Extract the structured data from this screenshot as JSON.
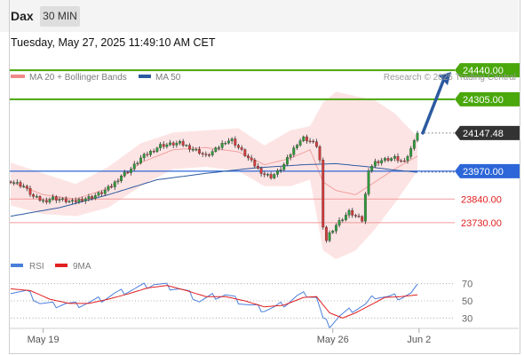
{
  "header": {
    "instrument": "Dax",
    "timeframe": "30 MIN",
    "datetime": "Tuesday, May 27, 2025 11:49:10 AM CET"
  },
  "legend": {
    "bollinger": {
      "label": "MA 20 + Bollinger Bands",
      "color": "#f08a8a"
    },
    "ma50": {
      "label": "MA 50",
      "color": "#2c5aa0"
    },
    "copyright": "Research © 2025 Trading Central"
  },
  "chart_data": [
    {
      "type": "line",
      "price_range": [
        23560,
        24540
      ],
      "candle_count": 126,
      "current_price": 24147.48,
      "key_levels": [
        {
          "value": 24440.0,
          "label": "24440.00",
          "kind": "resistance",
          "color": "#4aa70c"
        },
        {
          "value": 24305.0,
          "label": "24305.00",
          "kind": "resistance",
          "color": "#4aa70c"
        },
        {
          "value": 24147.48,
          "label": "24147.48",
          "kind": "last",
          "color": "#333333"
        },
        {
          "value": 23970.0,
          "label": "23970.00",
          "kind": "pivot",
          "color": "#2c66d8"
        },
        {
          "value": 23840.0,
          "label": "23840.00",
          "kind": "support",
          "color": "#e12020"
        },
        {
          "value": 23730.0,
          "label": "23730.00",
          "kind": "support",
          "color": "#e12020"
        }
      ],
      "price_path": [
        [
          0,
          23925
        ],
        [
          4,
          23900
        ],
        [
          7,
          23850
        ],
        [
          10,
          23830
        ],
        [
          13,
          23845
        ],
        [
          16,
          23835
        ],
        [
          19,
          23825
        ],
        [
          22,
          23840
        ],
        [
          25,
          23850
        ],
        [
          28,
          23870
        ],
        [
          31,
          23900
        ],
        [
          34,
          23950
        ],
        [
          37,
          23980
        ],
        [
          40,
          24030
        ],
        [
          43,
          24060
        ],
        [
          46,
          24090
        ],
        [
          49,
          24095
        ],
        [
          52,
          24100
        ],
        [
          55,
          24080
        ],
        [
          58,
          24060
        ],
        [
          60,
          24040
        ],
        [
          63,
          24070
        ],
        [
          66,
          24110
        ],
        [
          68,
          24115
        ],
        [
          70,
          24080
        ],
        [
          73,
          24030
        ],
        [
          76,
          23980
        ],
        [
          78,
          23955
        ],
        [
          80,
          23945
        ],
        [
          82,
          23965
        ],
        [
          84,
          24000
        ],
        [
          86,
          24050
        ],
        [
          88,
          24100
        ],
        [
          90,
          24125
        ],
        [
          92,
          24110
        ],
        [
          94,
          24090
        ],
        [
          95,
          24020
        ],
        [
          96,
          23700
        ],
        [
          97,
          23650
        ],
        [
          98,
          23680
        ],
        [
          100,
          23720
        ],
        [
          102,
          23750
        ],
        [
          104,
          23780
        ],
        [
          106,
          23760
        ],
        [
          108,
          23740
        ],
        [
          110,
          23980
        ],
        [
          112,
          24010
        ],
        [
          114,
          24020
        ],
        [
          116,
          24025
        ],
        [
          118,
          24030
        ],
        [
          120,
          24015
        ],
        [
          122,
          24040
        ],
        [
          123,
          24070
        ],
        [
          124,
          24120
        ],
        [
          125,
          24147
        ]
      ],
      "ma50_path": [
        [
          0,
          23760
        ],
        [
          15,
          23800
        ],
        [
          30,
          23860
        ],
        [
          45,
          23930
        ],
        [
          60,
          23960
        ],
        [
          75,
          23985
        ],
        [
          90,
          24000
        ],
        [
          100,
          24005
        ],
        [
          110,
          23990
        ],
        [
          118,
          23975
        ],
        [
          125,
          23965
        ]
      ],
      "bollinger_path": [
        [
          0,
          23810,
          23920,
          24010
        ],
        [
          10,
          23770,
          23860,
          23960
        ],
        [
          20,
          23760,
          23840,
          23910
        ],
        [
          30,
          23800,
          23890,
          23990
        ],
        [
          40,
          23900,
          24010,
          24100
        ],
        [
          50,
          23980,
          24070,
          24150
        ],
        [
          60,
          23990,
          24080,
          24160
        ],
        [
          70,
          23970,
          24060,
          24170
        ],
        [
          78,
          23900,
          24000,
          24090
        ],
        [
          86,
          23900,
          24030,
          24160
        ],
        [
          92,
          23930,
          24070,
          24180
        ],
        [
          96,
          23600,
          23920,
          24290
        ],
        [
          100,
          23560,
          23880,
          24340
        ],
        [
          106,
          23600,
          23860,
          24320
        ],
        [
          112,
          23700,
          23920,
          24300
        ],
        [
          118,
          23820,
          23980,
          24240
        ],
        [
          125,
          23970,
          24040,
          24130
        ]
      ],
      "projection": {
        "from": 24147.48,
        "to": 24440.0
      }
    },
    {
      "type": "line",
      "indicator": "RSI",
      "legend": [
        {
          "label": "RSI",
          "color": "#4a7fdc"
        },
        {
          "label": "9MA",
          "color": "#e12020"
        }
      ],
      "ylim": [
        20,
        80
      ],
      "levels": [
        70,
        50,
        30
      ],
      "level_labels": [
        "70",
        "50",
        "30"
      ],
      "rsi_path": [
        [
          0,
          62
        ],
        [
          5,
          60
        ],
        [
          9,
          48
        ],
        [
          13,
          45
        ],
        [
          17,
          47
        ],
        [
          20,
          45
        ],
        [
          24,
          48
        ],
        [
          28,
          52
        ],
        [
          32,
          58
        ],
        [
          36,
          62
        ],
        [
          40,
          66
        ],
        [
          44,
          70
        ],
        [
          48,
          67
        ],
        [
          52,
          64
        ],
        [
          55,
          58
        ],
        [
          58,
          50
        ],
        [
          62,
          55
        ],
        [
          66,
          57
        ],
        [
          70,
          50
        ],
        [
          74,
          44
        ],
        [
          78,
          40
        ],
        [
          81,
          42
        ],
        [
          85,
          48
        ],
        [
          88,
          55
        ],
        [
          91,
          58
        ],
        [
          94,
          54
        ],
        [
          96,
          28
        ],
        [
          98,
          22
        ],
        [
          101,
          32
        ],
        [
          105,
          40
        ],
        [
          109,
          45
        ],
        [
          112,
          56
        ],
        [
          116,
          54
        ],
        [
          120,
          55
        ],
        [
          123,
          58
        ],
        [
          125,
          66
        ]
      ],
      "ma9_path": [
        [
          0,
          64
        ],
        [
          6,
          62
        ],
        [
          12,
          52
        ],
        [
          18,
          47
        ],
        [
          24,
          47
        ],
        [
          30,
          52
        ],
        [
          36,
          58
        ],
        [
          42,
          65
        ],
        [
          48,
          68
        ],
        [
          54,
          62
        ],
        [
          60,
          55
        ],
        [
          66,
          55
        ],
        [
          72,
          50
        ],
        [
          78,
          43
        ],
        [
          84,
          45
        ],
        [
          90,
          54
        ],
        [
          94,
          55
        ],
        [
          98,
          36
        ],
        [
          102,
          30
        ],
        [
          106,
          36
        ],
        [
          110,
          44
        ],
        [
          115,
          54
        ],
        [
          120,
          55
        ],
        [
          125,
          57
        ]
      ]
    }
  ],
  "xaxis": {
    "labels": [
      {
        "text": "May 19",
        "index": 10
      },
      {
        "text": "May 26",
        "index": 99
      },
      {
        "text": "Jun 2",
        "index": 125.5
      }
    ]
  }
}
